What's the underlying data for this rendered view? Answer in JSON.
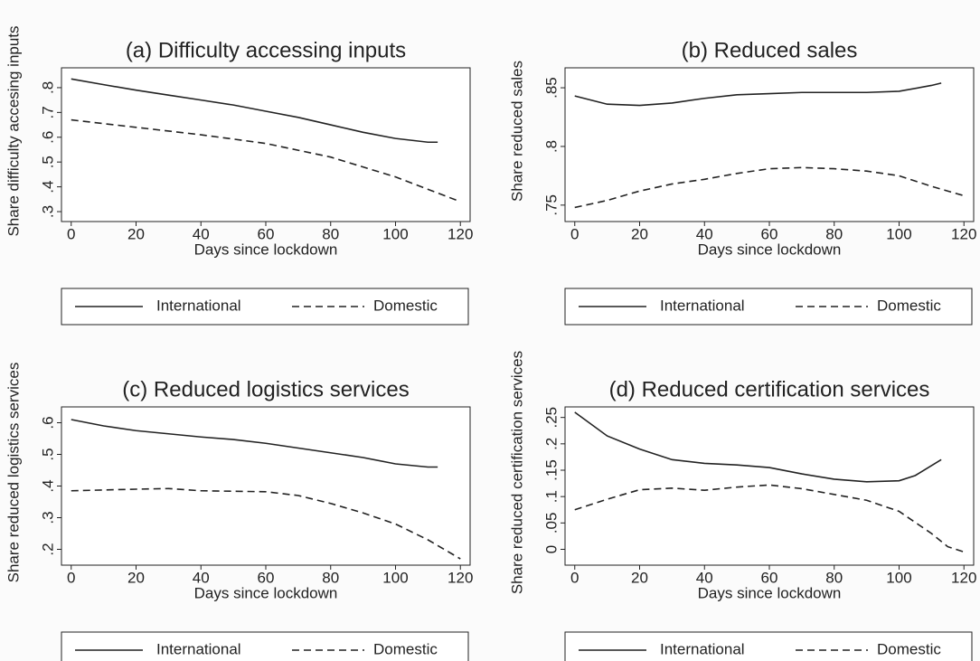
{
  "chart_data": [
    {
      "type": "line",
      "title": "(a) Difficulty accessing inputs",
      "x_label": "Days since lockdown",
      "y_label": "Share difficulty accesing inputs",
      "xlim": [
        -3,
        123
      ],
      "xticks": [
        0,
        20,
        40,
        60,
        80,
        100,
        120
      ],
      "ylim": [
        0.26,
        0.88
      ],
      "yticks": [
        {
          "value": 0.3,
          "label": ".3"
        },
        {
          "value": 0.4,
          "label": ".4"
        },
        {
          "value": 0.5,
          "label": ".5"
        },
        {
          "value": 0.6,
          "label": ".6"
        },
        {
          "value": 0.7,
          "label": ".7"
        },
        {
          "value": 0.8,
          "label": ".8"
        }
      ],
      "series": [
        {
          "name": "International",
          "color": "#222222",
          "dash": "solid",
          "x": [
            0,
            10,
            20,
            30,
            40,
            50,
            60,
            70,
            80,
            90,
            100,
            110,
            113
          ],
          "values": [
            0.835,
            0.812,
            0.79,
            0.77,
            0.75,
            0.73,
            0.705,
            0.68,
            0.65,
            0.62,
            0.595,
            0.58,
            0.58
          ]
        },
        {
          "name": "Domestic",
          "color": "#222222",
          "dash": "dashed",
          "x": [
            0,
            20,
            40,
            60,
            80,
            100,
            110,
            120
          ],
          "values": [
            0.67,
            0.64,
            0.61,
            0.575,
            0.52,
            0.44,
            0.39,
            0.34
          ]
        }
      ]
    },
    {
      "type": "line",
      "title": "(b) Reduced sales",
      "x_label": "Days since lockdown",
      "y_label": "Share reduced sales",
      "xlim": [
        -3,
        123
      ],
      "xticks": [
        0,
        20,
        40,
        60,
        80,
        100,
        120
      ],
      "ylim": [
        0.736,
        0.867
      ],
      "yticks": [
        {
          "value": 0.75,
          "label": ".75"
        },
        {
          "value": 0.8,
          "label": ".8"
        },
        {
          "value": 0.85,
          "label": ".85"
        }
      ],
      "series": [
        {
          "name": "International",
          "color": "#222222",
          "dash": "solid",
          "x": [
            0,
            10,
            20,
            30,
            40,
            50,
            60,
            70,
            80,
            90,
            100,
            110,
            113
          ],
          "values": [
            0.843,
            0.836,
            0.835,
            0.837,
            0.841,
            0.844,
            0.845,
            0.846,
            0.846,
            0.846,
            0.847,
            0.852,
            0.854
          ]
        },
        {
          "name": "Domestic",
          "color": "#222222",
          "dash": "dashed",
          "x": [
            0,
            10,
            20,
            30,
            40,
            50,
            60,
            70,
            80,
            90,
            100,
            110,
            120
          ],
          "values": [
            0.748,
            0.754,
            0.762,
            0.768,
            0.772,
            0.777,
            0.781,
            0.782,
            0.781,
            0.779,
            0.775,
            0.766,
            0.758
          ]
        }
      ]
    },
    {
      "type": "line",
      "title": "(c) Reduced logistics services",
      "x_label": "Days since lockdown",
      "y_label": "Share reduced logistics services",
      "xlim": [
        -3,
        123
      ],
      "xticks": [
        0,
        20,
        40,
        60,
        80,
        100,
        120
      ],
      "ylim": [
        0.15,
        0.65
      ],
      "yticks": [
        {
          "value": 0.2,
          "label": ".2"
        },
        {
          "value": 0.3,
          "label": ".3"
        },
        {
          "value": 0.4,
          "label": ".4"
        },
        {
          "value": 0.5,
          "label": ".5"
        },
        {
          "value": 0.6,
          "label": ".6"
        }
      ],
      "series": [
        {
          "name": "International",
          "color": "#222222",
          "dash": "solid",
          "x": [
            0,
            10,
            20,
            30,
            40,
            50,
            60,
            70,
            80,
            90,
            100,
            110,
            113
          ],
          "values": [
            0.61,
            0.59,
            0.575,
            0.565,
            0.555,
            0.547,
            0.535,
            0.52,
            0.505,
            0.49,
            0.47,
            0.46,
            0.46
          ]
        },
        {
          "name": "Domestic",
          "color": "#222222",
          "dash": "dashed",
          "x": [
            0,
            20,
            30,
            40,
            60,
            70,
            80,
            90,
            100,
            110,
            120
          ],
          "values": [
            0.385,
            0.39,
            0.392,
            0.385,
            0.382,
            0.37,
            0.345,
            0.315,
            0.28,
            0.23,
            0.17
          ]
        }
      ]
    },
    {
      "type": "line",
      "title": "(d) Reduced certification services",
      "x_label": "Days since lockdown",
      "y_label": "Share reduced certification services",
      "xlim": [
        -3,
        123
      ],
      "xticks": [
        0,
        20,
        40,
        60,
        80,
        100,
        120
      ],
      "ylim": [
        -0.03,
        0.27
      ],
      "yticks": [
        0,
        {
          "value": 0.05,
          "label": ".05"
        },
        {
          "value": 0.1,
          "label": ".1"
        },
        {
          "value": 0.15,
          "label": ".15"
        },
        {
          "value": 0.2,
          "label": ".2"
        },
        {
          "value": 0.25,
          "label": ".25"
        }
      ],
      "series": [
        {
          "name": "International",
          "color": "#222222",
          "dash": "solid",
          "x": [
            0,
            10,
            20,
            30,
            40,
            50,
            60,
            70,
            80,
            90,
            100,
            105,
            113
          ],
          "values": [
            0.26,
            0.215,
            0.19,
            0.17,
            0.163,
            0.16,
            0.155,
            0.143,
            0.133,
            0.128,
            0.13,
            0.14,
            0.17
          ]
        },
        {
          "name": "Domestic",
          "color": "#222222",
          "dash": "dashed",
          "x": [
            0,
            10,
            20,
            30,
            40,
            50,
            60,
            70,
            80,
            90,
            100,
            110,
            115,
            120
          ],
          "values": [
            0.075,
            0.095,
            0.113,
            0.116,
            0.112,
            0.118,
            0.122,
            0.115,
            0.104,
            0.093,
            0.072,
            0.03,
            0.005,
            -0.005
          ]
        }
      ]
    }
  ]
}
